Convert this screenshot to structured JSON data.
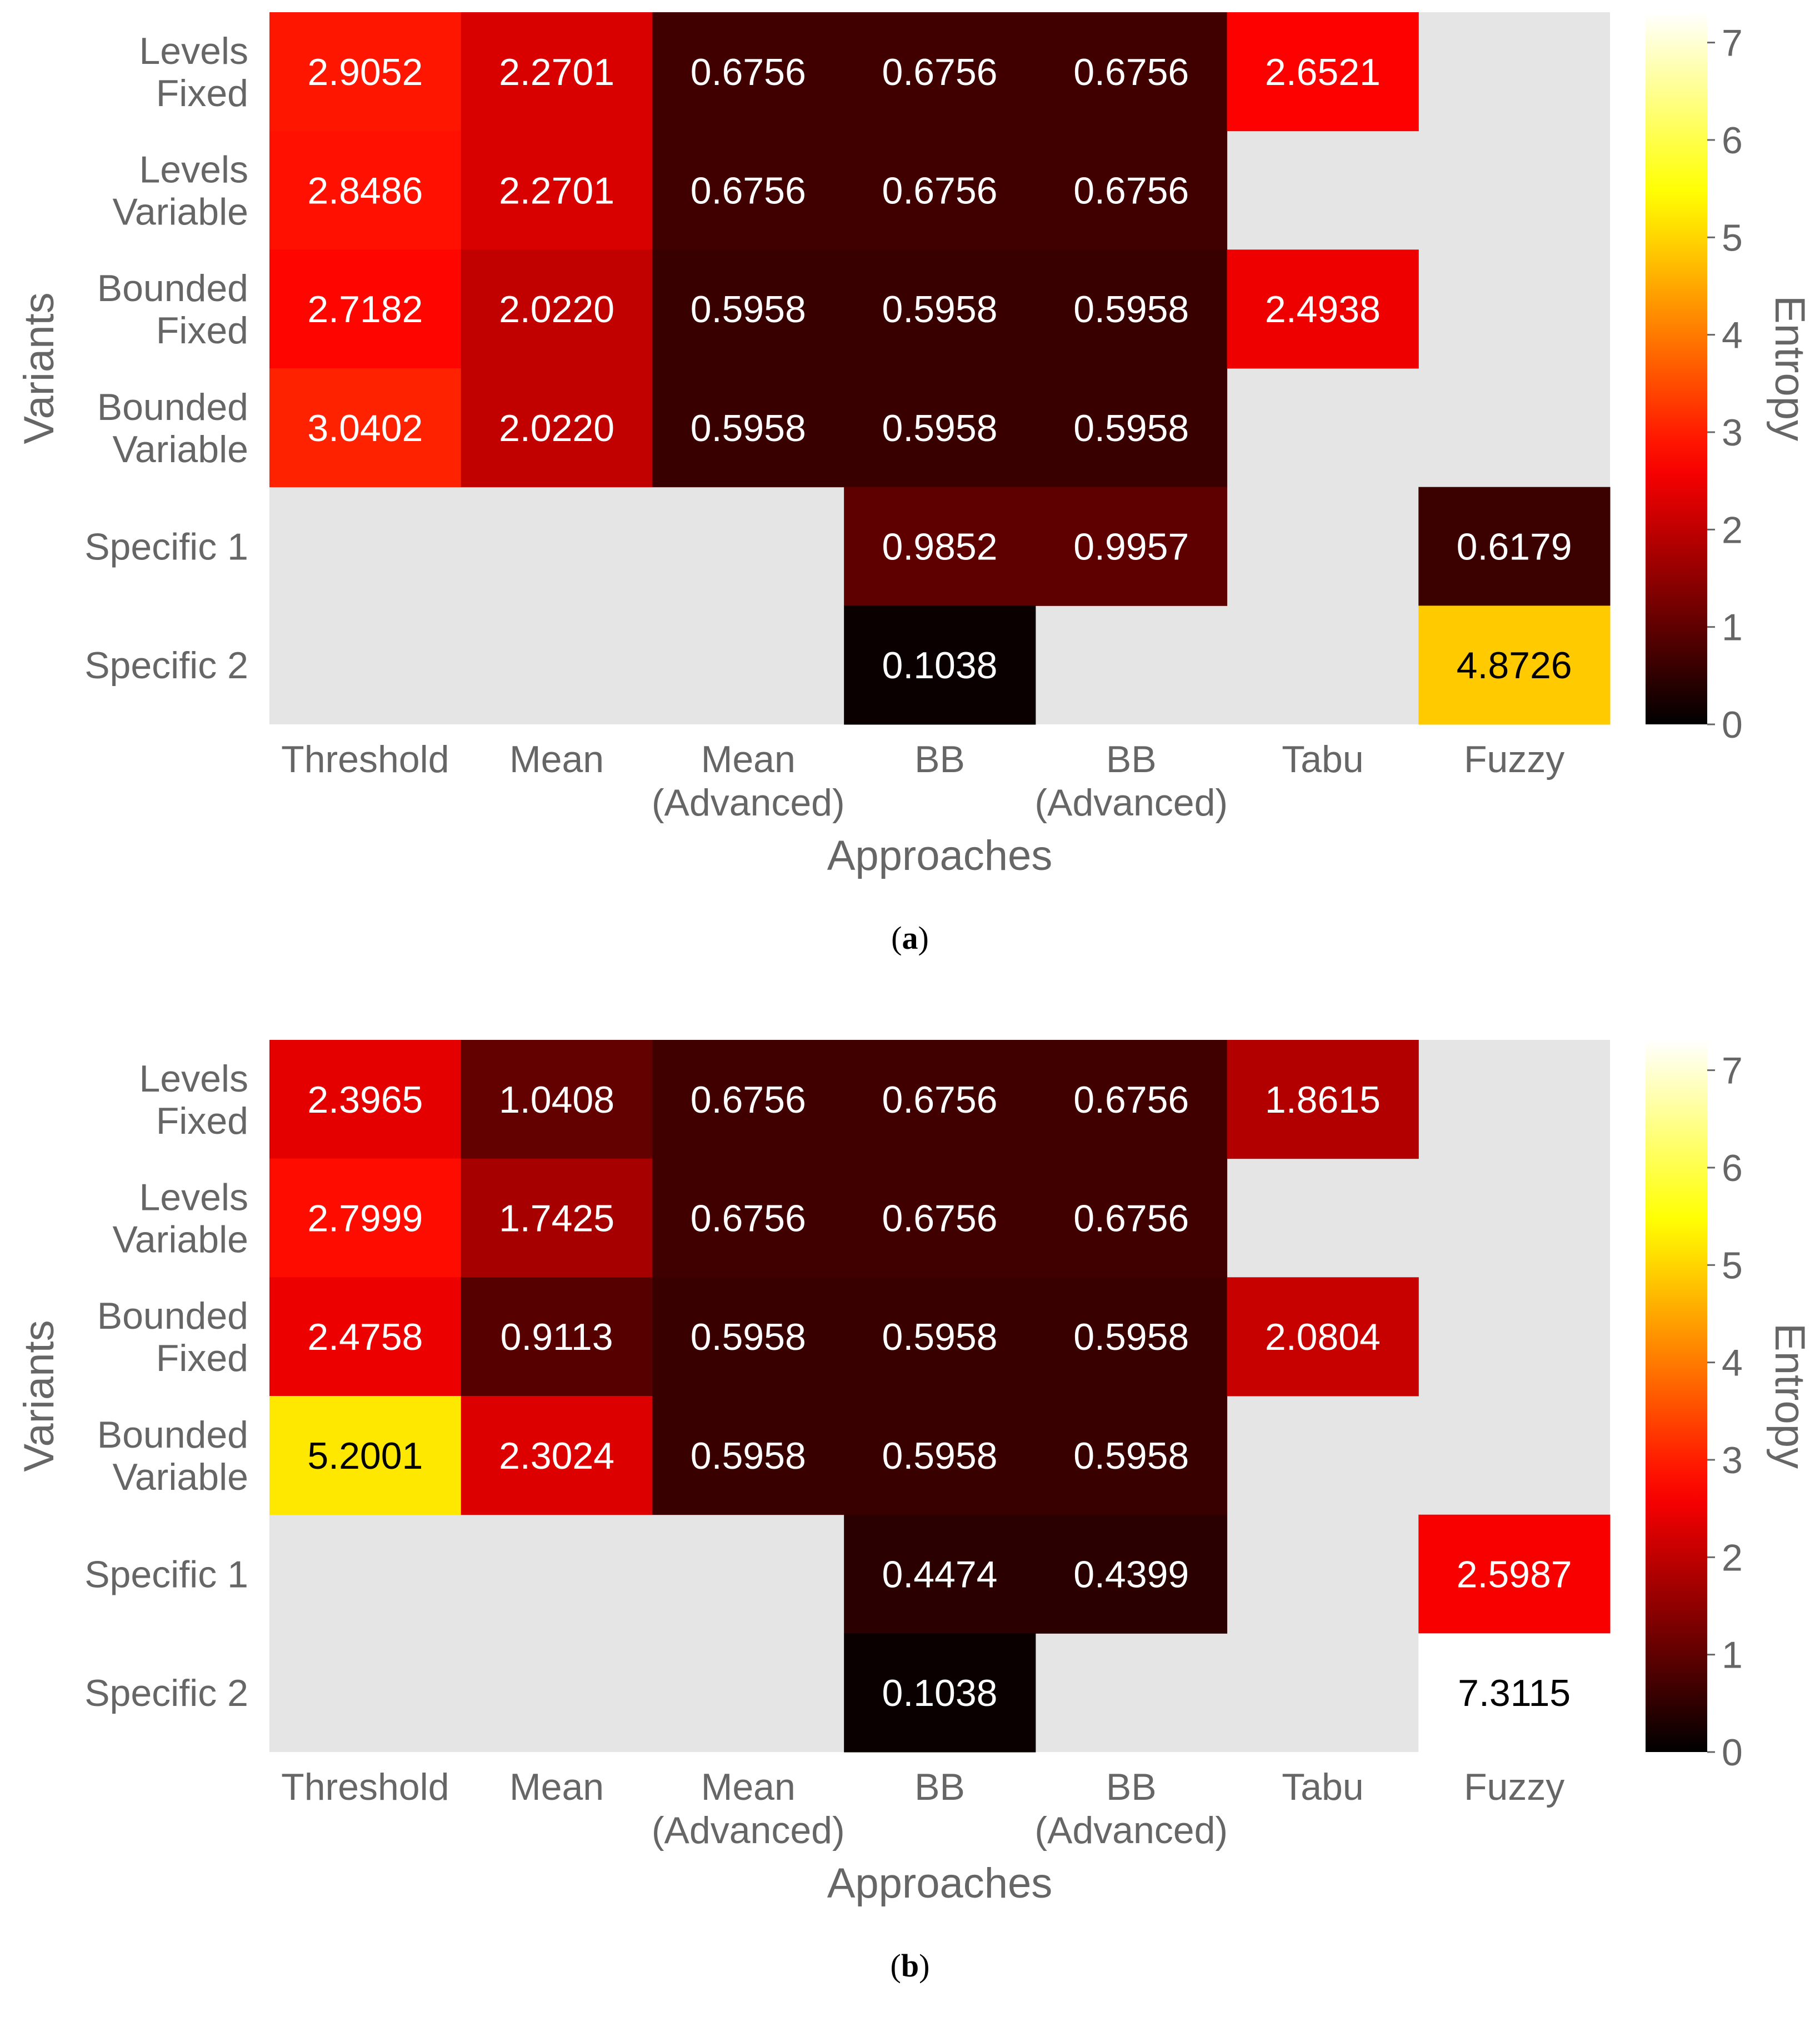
{
  "chart_data": [
    {
      "type": "heatmap",
      "caption_letter": "a",
      "xlabel": "Approaches",
      "ylabel": "Variants",
      "colorbar_label": "Entropy",
      "colorbar_range": [
        0,
        7.3115
      ],
      "colorbar_ticks": [
        "0",
        "1",
        "2",
        "3",
        "4",
        "5",
        "6",
        "7"
      ],
      "colormap": "hot",
      "missing_color": "#e5e5e5",
      "x_categories": [
        [
          "Threshold"
        ],
        [
          "Mean"
        ],
        [
          "Mean",
          "(Advanced)"
        ],
        [
          "BB"
        ],
        [
          "BB",
          "(Advanced)"
        ],
        [
          "Tabu"
        ],
        [
          "Fuzzy"
        ]
      ],
      "y_categories": [
        [
          "Levels",
          "Fixed"
        ],
        [
          "Levels",
          "Variable"
        ],
        [
          "Bounded",
          "Fixed"
        ],
        [
          "Bounded",
          "Variable"
        ],
        [
          "Specific 1"
        ],
        [
          "Specific 2"
        ]
      ],
      "values": [
        [
          2.9052,
          2.2701,
          0.6756,
          0.6756,
          0.6756,
          2.6521,
          null
        ],
        [
          2.8486,
          2.2701,
          0.6756,
          0.6756,
          0.6756,
          null,
          null
        ],
        [
          2.7182,
          2.022,
          0.5958,
          0.5958,
          0.5958,
          2.4938,
          null
        ],
        [
          3.0402,
          2.022,
          0.5958,
          0.5958,
          0.5958,
          null,
          null
        ],
        [
          null,
          null,
          null,
          0.9852,
          0.9957,
          null,
          0.6179
        ],
        [
          null,
          null,
          null,
          0.1038,
          null,
          null,
          4.8726
        ]
      ],
      "labels": [
        [
          "2.9052",
          "2.2701",
          "0.6756",
          "0.6756",
          "0.6756",
          "2.6521",
          ""
        ],
        [
          "2.8486",
          "2.2701",
          "0.6756",
          "0.6756",
          "0.6756",
          "",
          ""
        ],
        [
          "2.7182",
          "2.0220",
          "0.5958",
          "0.5958",
          "0.5958",
          "2.4938",
          ""
        ],
        [
          "3.0402",
          "2.0220",
          "0.5958",
          "0.5958",
          "0.5958",
          "",
          ""
        ],
        [
          "",
          "",
          "",
          "0.9852",
          "0.9957",
          "",
          "0.6179"
        ],
        [
          "",
          "",
          "",
          "0.1038",
          "",
          "",
          "4.8726"
        ]
      ]
    },
    {
      "type": "heatmap",
      "caption_letter": "b",
      "xlabel": "Approaches",
      "ylabel": "Variants",
      "colorbar_label": "Entropy",
      "colorbar_range": [
        0,
        7.3115
      ],
      "colorbar_ticks": [
        "0",
        "1",
        "2",
        "3",
        "4",
        "5",
        "6",
        "7"
      ],
      "colormap": "hot",
      "missing_color": "#e5e5e5",
      "x_categories": [
        [
          "Threshold"
        ],
        [
          "Mean"
        ],
        [
          "Mean",
          "(Advanced)"
        ],
        [
          "BB"
        ],
        [
          "BB",
          "(Advanced)"
        ],
        [
          "Tabu"
        ],
        [
          "Fuzzy"
        ]
      ],
      "y_categories": [
        [
          "Levels",
          "Fixed"
        ],
        [
          "Levels",
          "Variable"
        ],
        [
          "Bounded",
          "Fixed"
        ],
        [
          "Bounded",
          "Variable"
        ],
        [
          "Specific 1"
        ],
        [
          "Specific 2"
        ]
      ],
      "values": [
        [
          2.3965,
          1.0408,
          0.6756,
          0.6756,
          0.6756,
          1.8615,
          null
        ],
        [
          2.7999,
          1.7425,
          0.6756,
          0.6756,
          0.6756,
          null,
          null
        ],
        [
          2.4758,
          0.9113,
          0.5958,
          0.5958,
          0.5958,
          2.0804,
          null
        ],
        [
          5.2001,
          2.3024,
          0.5958,
          0.5958,
          0.5958,
          null,
          null
        ],
        [
          null,
          null,
          null,
          0.4474,
          0.4399,
          null,
          2.5987
        ],
        [
          null,
          null,
          null,
          0.1038,
          null,
          null,
          7.3115
        ]
      ],
      "labels": [
        [
          "2.3965",
          "1.0408",
          "0.6756",
          "0.6756",
          "0.6756",
          "1.8615",
          ""
        ],
        [
          "2.7999",
          "1.7425",
          "0.6756",
          "0.6756",
          "0.6756",
          "",
          ""
        ],
        [
          "2.4758",
          "0.9113",
          "0.5958",
          "0.5958",
          "0.5958",
          "2.0804",
          ""
        ],
        [
          "5.2001",
          "2.3024",
          "0.5958",
          "0.5958",
          "0.5958",
          "",
          ""
        ],
        [
          "",
          "",
          "",
          "0.4474",
          "0.4399",
          "",
          "2.5987"
        ],
        [
          "",
          "",
          "",
          "0.1038",
          "",
          "",
          "7.3115"
        ]
      ]
    }
  ]
}
